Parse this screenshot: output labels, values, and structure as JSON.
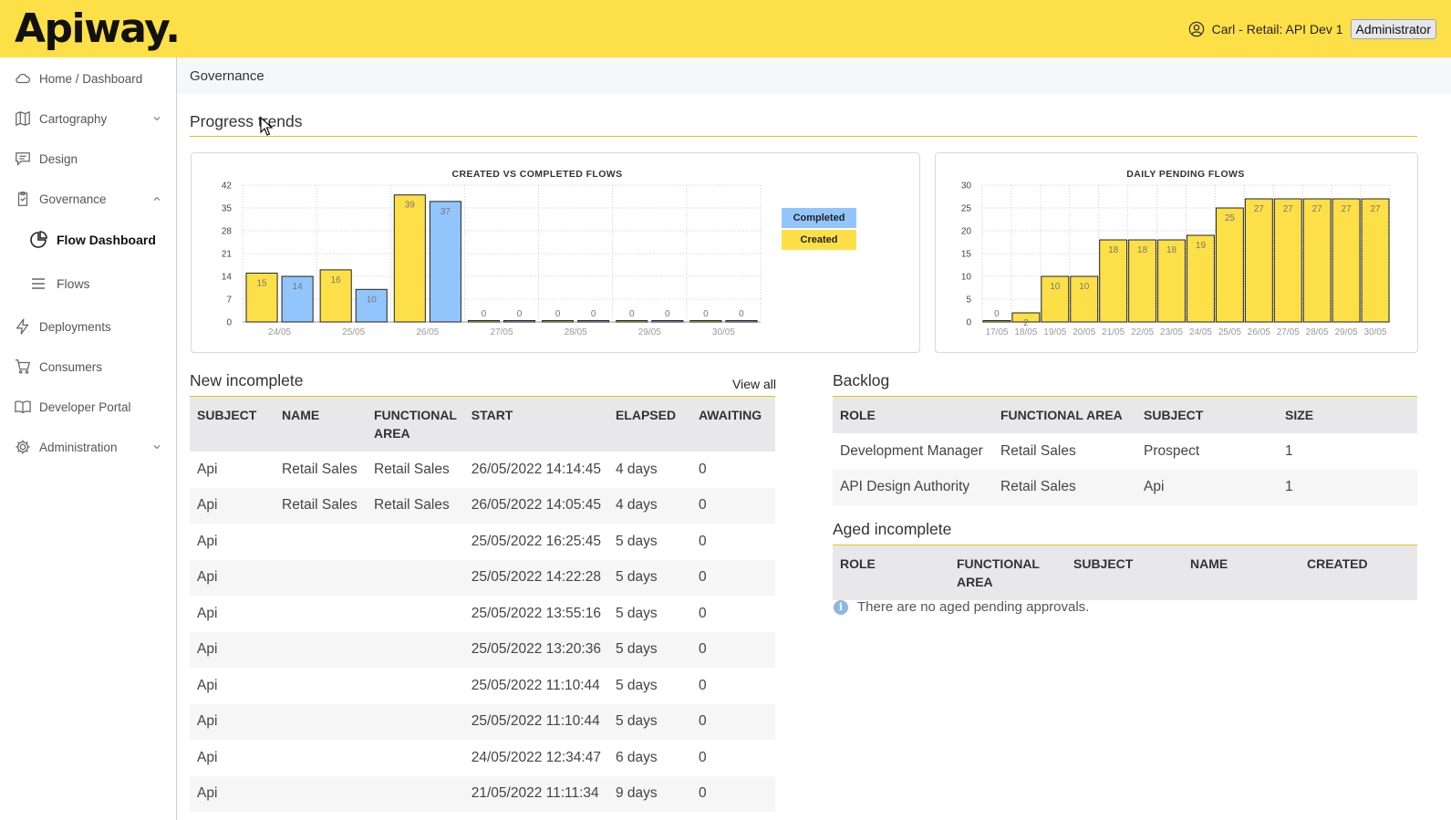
{
  "header": {
    "logo": "Apiway.",
    "user": "Carl - Retail: API Dev 1",
    "role": "Administrator"
  },
  "sidebar": {
    "items": [
      {
        "label": "Home / Dashboard",
        "icon": "home-icon"
      },
      {
        "label": "Cartography",
        "icon": "map-icon",
        "chevron": "down"
      },
      {
        "label": "Design",
        "icon": "comment-icon"
      },
      {
        "label": "Governance",
        "icon": "clipboard-icon",
        "chevron": "up"
      },
      {
        "label": "Deployments",
        "icon": "bolt-icon"
      },
      {
        "label": "Consumers",
        "icon": "cart-icon"
      },
      {
        "label": "Developer Portal",
        "icon": "book-icon"
      },
      {
        "label": "Administration",
        "icon": "gear-icon",
        "chevron": "down"
      }
    ],
    "subitems": [
      {
        "label": "Flow Dashboard",
        "icon": "pie-chart-icon",
        "active": true
      },
      {
        "label": "Flows",
        "icon": "list-icon",
        "active": false
      }
    ]
  },
  "breadcrumb": "Governance",
  "progress_title": "Progress trends",
  "colors": {
    "accent": "#fde047",
    "completed": "#93c5fd",
    "created": "#fde047"
  },
  "chart_data": [
    {
      "type": "bar",
      "title": "CREATED VS COMPLETED FLOWS",
      "categories": [
        "24/05",
        "25/05",
        "26/05",
        "27/05",
        "28/05",
        "29/05",
        "30/05"
      ],
      "series": [
        {
          "name": "Created",
          "color": "#fde047",
          "values": [
            15,
            16,
            39,
            0,
            0,
            0,
            0
          ]
        },
        {
          "name": "Completed",
          "color": "#93c5fd",
          "values": [
            14,
            10,
            37,
            0,
            0,
            0,
            0
          ]
        }
      ],
      "yticks": [
        0,
        7,
        14,
        21,
        28,
        35,
        42
      ],
      "ylim": [
        0,
        42
      ],
      "legend": "right",
      "grid": true
    },
    {
      "type": "bar",
      "title": "DAILY PENDING FLOWS",
      "categories": [
        "17/05",
        "18/05",
        "19/05",
        "20/05",
        "21/05",
        "22/05",
        "23/05",
        "24/05",
        "25/05",
        "26/05",
        "27/05",
        "28/05",
        "29/05",
        "30/05"
      ],
      "values": [
        0,
        2,
        10,
        10,
        18,
        18,
        18,
        19,
        25,
        27,
        27,
        27,
        27,
        27
      ],
      "yticks": [
        0,
        5,
        10,
        15,
        20,
        25,
        30
      ],
      "ylim": [
        0,
        30
      ],
      "grid": true
    }
  ],
  "new_incomplete": {
    "title": "New incomplete",
    "view_all": "View all",
    "headers": [
      "SUBJECT",
      "NAME",
      "FUNCTIONAL AREA",
      "START",
      "ELAPSED",
      "AWAITING"
    ],
    "rows": [
      [
        "Api",
        "Retail Sales",
        "Retail Sales",
        "26/05/2022 14:14:45",
        "4 days",
        "0"
      ],
      [
        "Api",
        "Retail Sales",
        "Retail Sales",
        "26/05/2022 14:05:45",
        "4 days",
        "0"
      ],
      [
        "Api",
        "",
        "",
        "25/05/2022 16:25:45",
        "5 days",
        "0"
      ],
      [
        "Api",
        "",
        "",
        "25/05/2022 14:22:28",
        "5 days",
        "0"
      ],
      [
        "Api",
        "",
        "",
        "25/05/2022 13:55:16",
        "5 days",
        "0"
      ],
      [
        "Api",
        "",
        "",
        "25/05/2022 13:20:36",
        "5 days",
        "0"
      ],
      [
        "Api",
        "",
        "",
        "25/05/2022 11:10:44",
        "5 days",
        "0"
      ],
      [
        "Api",
        "",
        "",
        "25/05/2022 11:10:44",
        "5 days",
        "0"
      ],
      [
        "Api",
        "",
        "",
        "24/05/2022 12:34:47",
        "6 days",
        "0"
      ],
      [
        "Api",
        "",
        "",
        "21/05/2022 11:11:34",
        "9 days",
        "0"
      ]
    ]
  },
  "backlog": {
    "title": "Backlog",
    "headers": [
      "ROLE",
      "FUNCTIONAL AREA",
      "SUBJECT",
      "SIZE"
    ],
    "rows": [
      [
        "Development Manager",
        "Retail Sales",
        "Prospect",
        "1"
      ],
      [
        "API Design Authority",
        "Retail Sales",
        "Api",
        "1"
      ]
    ]
  },
  "aged_incomplete": {
    "title": "Aged incomplete",
    "headers": [
      "ROLE",
      "FUNCTIONAL AREA",
      "SUBJECT",
      "NAME",
      "CREATED"
    ],
    "empty_message": "There are no aged pending approvals."
  }
}
